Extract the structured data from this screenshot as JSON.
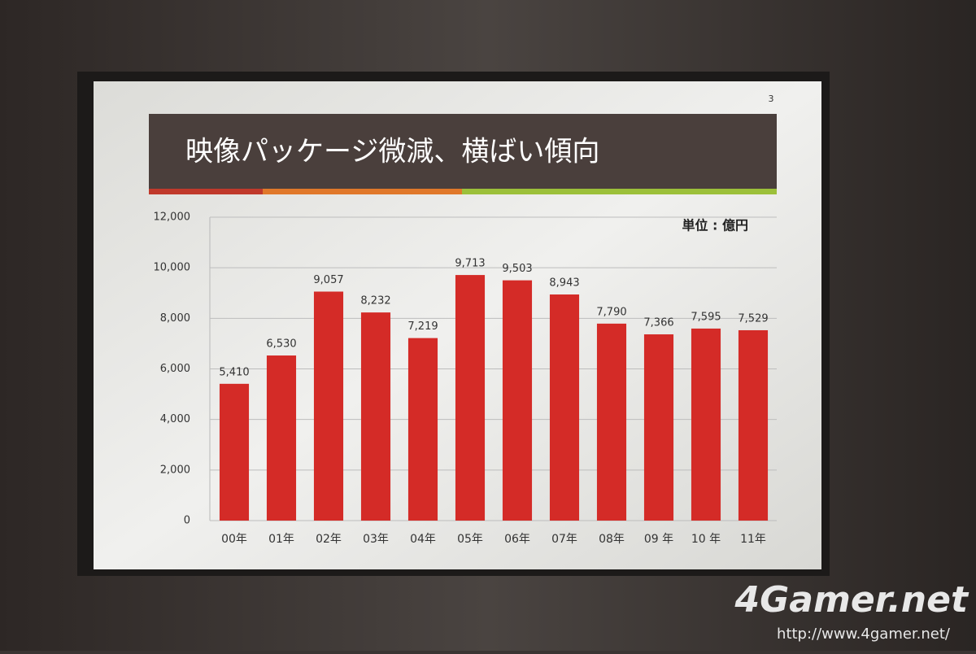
{
  "slide_number": "3",
  "watermark": {
    "brand": "4Gamer.net",
    "url": "http://www.4gamer.net/"
  },
  "chart_data": {
    "type": "bar",
    "title": "映像パッケージ微減、横ばい傾向",
    "unit_label": "単位 : 億円",
    "categories": [
      "00年",
      "01年",
      "02年",
      "03年",
      "04年",
      "05年",
      "06年",
      "07年",
      "08年",
      "09 年",
      "10 年",
      "11年"
    ],
    "values": [
      5410,
      6530,
      9057,
      8232,
      7219,
      9713,
      9503,
      8943,
      7790,
      7366,
      7595,
      7529
    ],
    "value_labels": [
      "5,410",
      "6,530",
      "9,057",
      "8,232",
      "7,219",
      "9,713",
      "9,503",
      "8,943",
      "7,790",
      "7,366",
      "7,595",
      "7,529"
    ],
    "color": "#d42b27",
    "ylim": [
      0,
      12000
    ],
    "yticks": [
      0,
      {
        "value": 2000,
        "label": "2,000"
      },
      {
        "value": 4000,
        "label": "4,000"
      },
      {
        "value": 6000,
        "label": "6,000"
      },
      {
        "value": 8000,
        "label": "8,000"
      },
      {
        "value": 10000,
        "label": "10,000"
      },
      {
        "value": 12000,
        "label": "12,000"
      }
    ],
    "grid": true
  }
}
